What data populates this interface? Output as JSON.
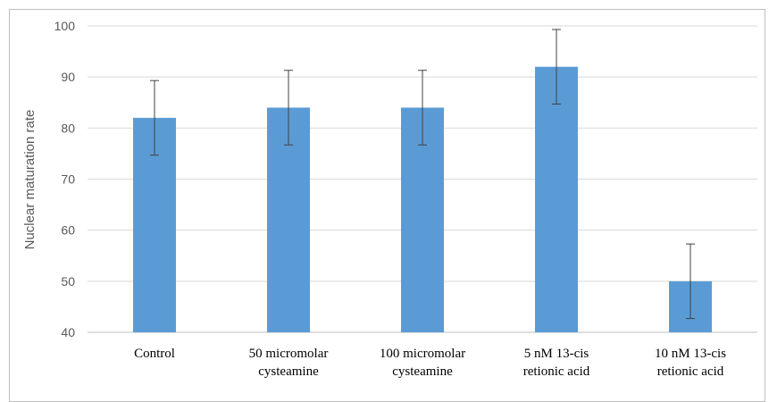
{
  "chart_data": {
    "type": "bar",
    "title": "",
    "xlabel": "",
    "ylabel": "Nuclear maturation rate",
    "ylim": [
      40,
      100
    ],
    "yticks": [
      40,
      50,
      60,
      70,
      80,
      90,
      100
    ],
    "grid": true,
    "categories": [
      [
        "Control"
      ],
      [
        "50 micromolar",
        "cysteamine"
      ],
      [
        "100 micromolar",
        "cysteamine"
      ],
      [
        "5 nM 13-cis",
        "retionic acid"
      ],
      [
        "10 nM 13-cis",
        "retionic acid"
      ]
    ],
    "series": [
      {
        "values": [
          82,
          84,
          84,
          92,
          50
        ],
        "error": [
          7.3,
          7.3,
          7.3,
          7.3,
          7.3
        ],
        "color": "#5b9bd5"
      }
    ]
  }
}
